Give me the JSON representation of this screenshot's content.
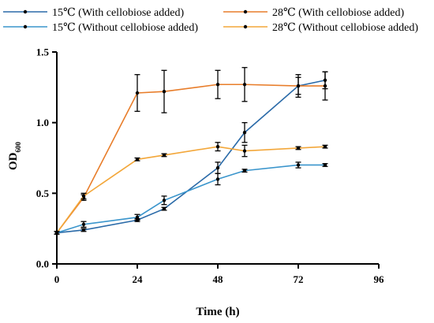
{
  "chart_data": {
    "type": "line",
    "xlabel": "Time (h)",
    "ylabel": "OD",
    "ylabel_subscript": "600",
    "xlim": [
      0,
      96
    ],
    "ylim": [
      0.0,
      1.5
    ],
    "xticks": [
      0,
      24,
      48,
      72,
      96
    ],
    "xtick_labels": [
      "0",
      "24",
      "48",
      "72",
      "96"
    ],
    "yticks": [
      0.0,
      0.5,
      1.0,
      1.5
    ],
    "ytick_labels": [
      "0.0",
      "0.5",
      "1.0",
      "1.5"
    ],
    "grid": false,
    "legend_position": "top",
    "series": [
      {
        "name": "15℃ (With cellobiose added)",
        "color": "#2a6aa8",
        "x": [
          0,
          8,
          24,
          32,
          48,
          56,
          72,
          80
        ],
        "y": [
          0.22,
          0.24,
          0.31,
          0.39,
          0.68,
          0.93,
          1.26,
          1.3
        ],
        "err": [
          0.01,
          0.01,
          0.01,
          0.01,
          0.04,
          0.07,
          0.06,
          0.06
        ]
      },
      {
        "name": "15℃ (Without cellobiose added)",
        "color": "#3a95cc",
        "x": [
          0,
          8,
          24,
          32,
          48,
          56,
          72,
          80
        ],
        "y": [
          0.22,
          0.28,
          0.33,
          0.45,
          0.6,
          0.66,
          0.7,
          0.7
        ],
        "err": [
          0.01,
          0.02,
          0.02,
          0.03,
          0.04,
          0.01,
          0.02,
          0.01
        ]
      },
      {
        "name": "28℃ (With cellobiose added)",
        "color": "#e87d2a",
        "x": [
          0,
          8,
          24,
          32,
          48,
          56,
          72,
          80
        ],
        "y": [
          0.22,
          0.47,
          1.21,
          1.22,
          1.27,
          1.27,
          1.26,
          1.26
        ],
        "err": [
          0.01,
          0.02,
          0.13,
          0.15,
          0.1,
          0.12,
          0.08,
          0.1
        ]
      },
      {
        "name": "28℃ (Without cellobiose added)",
        "color": "#f3a73a",
        "x": [
          0,
          8,
          24,
          32,
          48,
          56,
          72,
          80
        ],
        "y": [
          0.22,
          0.48,
          0.74,
          0.77,
          0.83,
          0.8,
          0.82,
          0.83
        ],
        "err": [
          0.01,
          0.02,
          0.01,
          0.01,
          0.03,
          0.04,
          0.01,
          0.01
        ]
      }
    ]
  }
}
